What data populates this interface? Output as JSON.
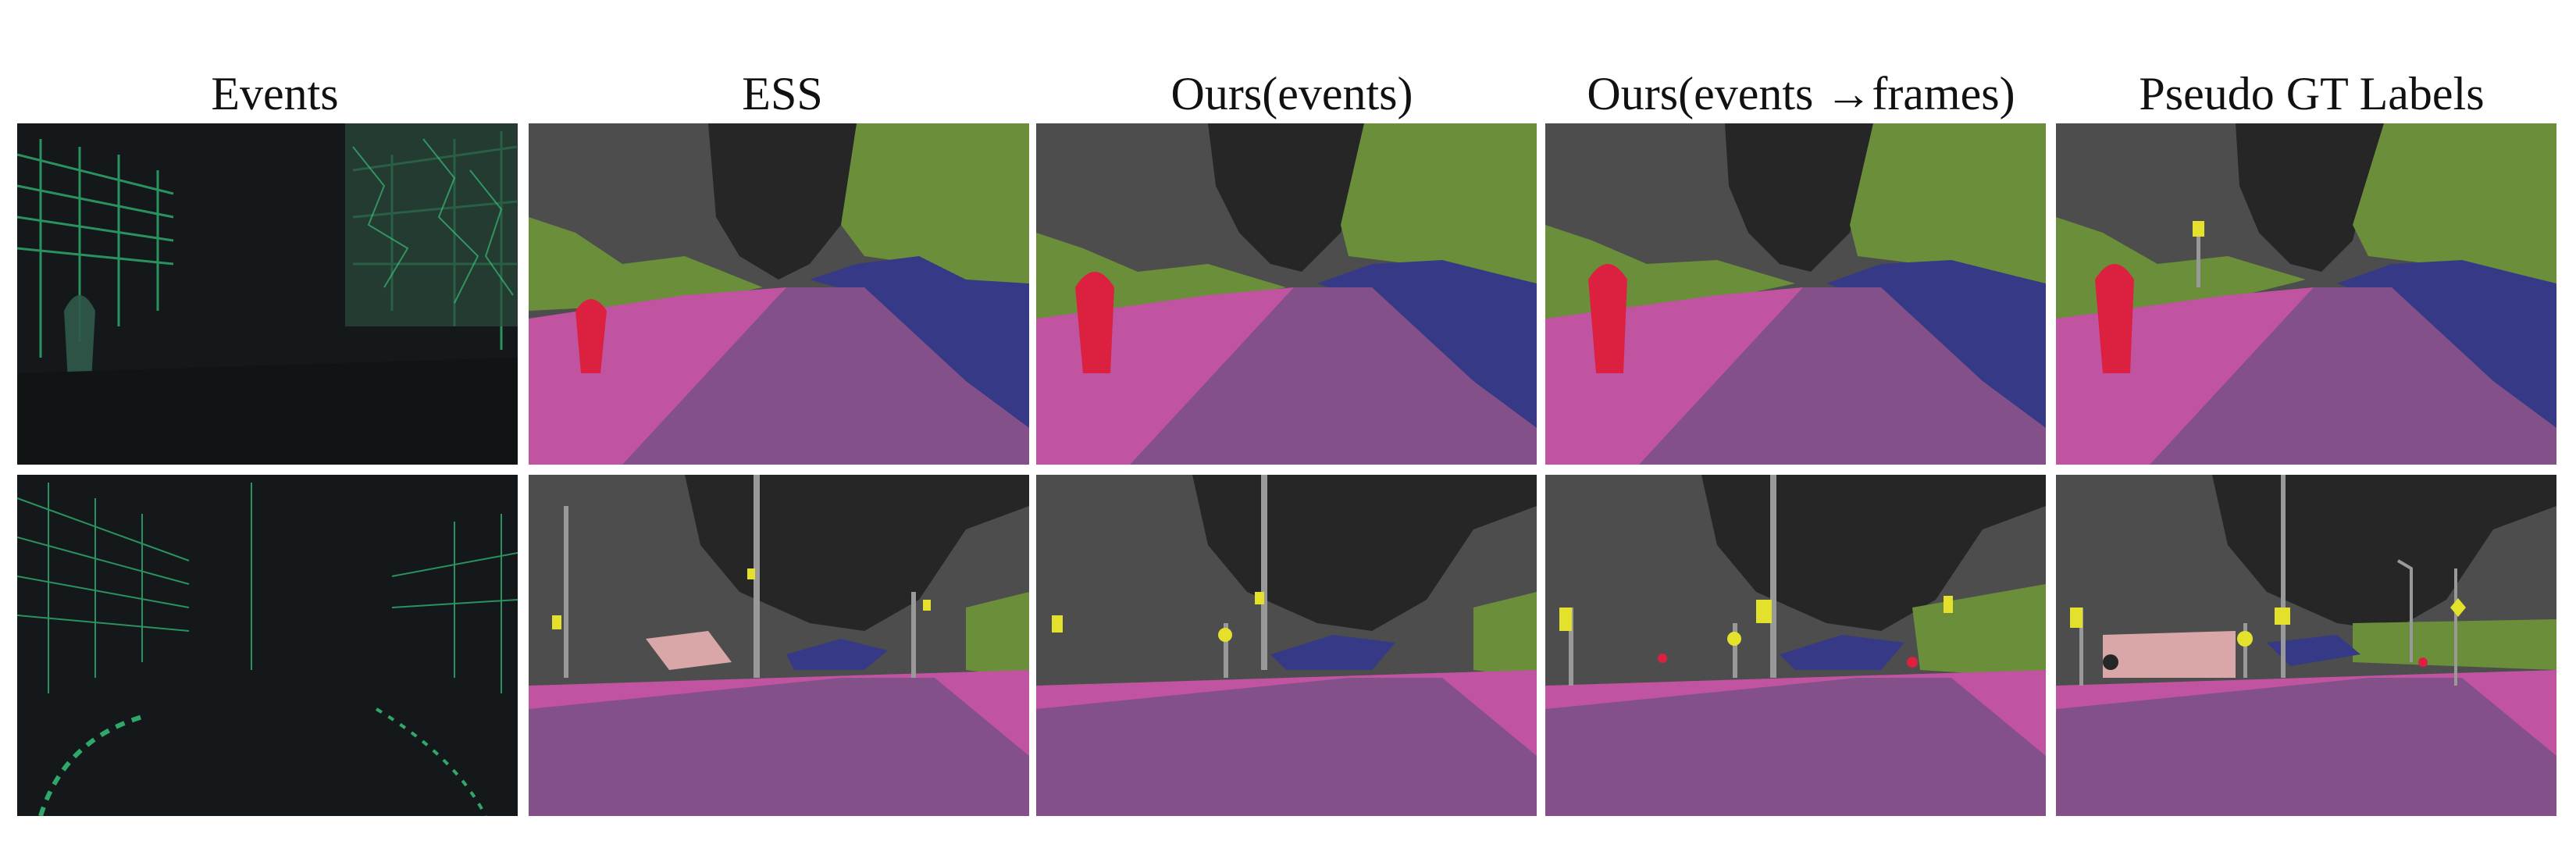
{
  "figure": {
    "columns": [
      {
        "key": "events",
        "label": "Events"
      },
      {
        "key": "ess",
        "label": "ESS"
      },
      {
        "key": "ours_events",
        "label": "Ours(events)"
      },
      {
        "key": "ours_events_frames",
        "label": "Ours(events →frames)"
      },
      {
        "key": "pseudo_gt",
        "label": "Pseudo GT Labels"
      }
    ],
    "rows": [
      {
        "scene": "street scene with pedestrian and building facade"
      },
      {
        "scene": "street scene with poles, traffic lights and cars"
      }
    ]
  },
  "colors": {
    "sky": "#262626",
    "building": "#4d4d4d",
    "vegetation": "#6b8e3a",
    "car": "#363a86",
    "sidewalk": "#c054a0",
    "road": "#84508a",
    "person": "#dc2140",
    "pole": "#999999",
    "traffic_sign": "#e3e12b",
    "truck": "#d9a7a7",
    "events_bg": "#14181a",
    "events_edge": "#2fa86a"
  }
}
